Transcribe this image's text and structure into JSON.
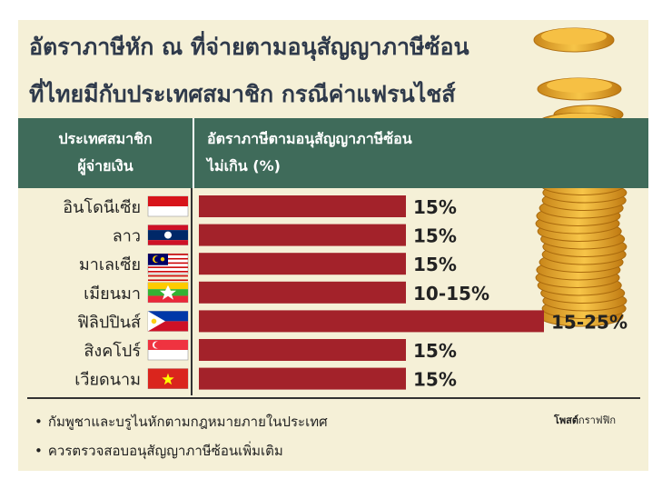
{
  "title_line1": "อัตราภาษีหัก ณ ที่จ่ายตามอนุสัญญาภาษีซ้อน",
  "title_line2": "ที่ไทยมีกับประเทศสมาชิก กรณีค่าแฟรนไชส์",
  "header": {
    "col1_line1": "ประเทศสมาชิก",
    "col1_line2": "ผู้จ่ายเงิน",
    "col2_line1": "อัตราภาษีตามอนุสัญญาภาษีซ้อน",
    "col2_line2": "ไม่เกิน (%)"
  },
  "colors": {
    "bar": "#a3222a",
    "header": "#3f6b5a",
    "background": "#f5f0d7"
  },
  "chart_data": {
    "type": "bar",
    "orientation": "horizontal",
    "categories": [
      "อินโดนีเซีย",
      "ลาว",
      "มาเลเซีย",
      "เมียนมา",
      "ฟิลิปปินส์",
      "สิงคโปร์",
      "เวียดนาม"
    ],
    "values": [
      15,
      15,
      15,
      15,
      25,
      15,
      15
    ],
    "data_labels": [
      "15%",
      "15%",
      "15%",
      "10-15%",
      "15-25%",
      "15%",
      "15%"
    ],
    "flags": [
      "indonesia-flag",
      "laos-flag",
      "malaysia-flag",
      "myanmar-flag",
      "philippines-flag",
      "singapore-flag",
      "vietnam-flag"
    ],
    "xlim": [
      0,
      25
    ]
  },
  "notes": [
    "กัมพูชาและบรูไนหักตามกฎหมายภายในประเทศ",
    "ควรตรวจสอบอนุสัญญาภาษีซ้อนเพิ่มเติม"
  ],
  "credit_bold": "โพสต์",
  "credit_rest": "กราฟฟิก"
}
